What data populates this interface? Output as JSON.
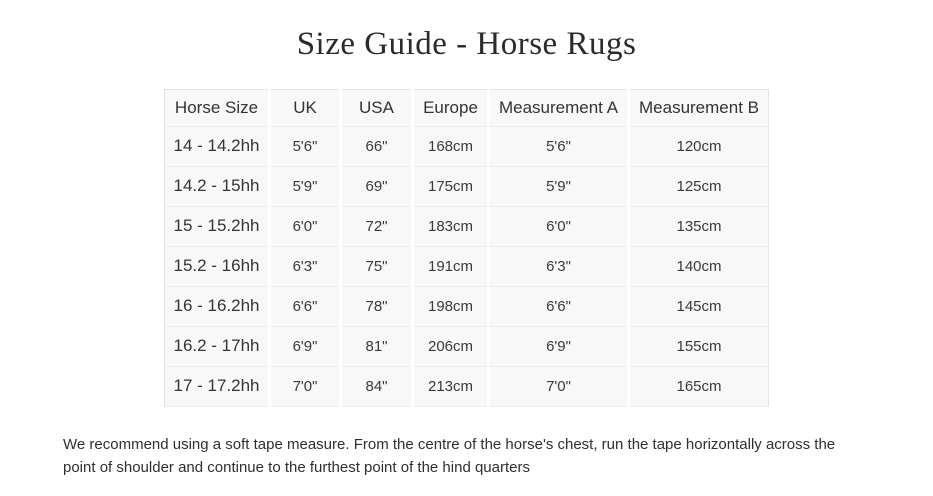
{
  "page": {
    "title": "Size Guide - Horse Rugs"
  },
  "table": {
    "columns": [
      "Horse Size",
      "UK",
      "USA",
      "Europe",
      "Measurement A",
      "Measurement B"
    ],
    "rows": [
      [
        "14 - 14.2hh",
        "5'6\"",
        "66\"",
        "168cm",
        "5'6\"",
        "120cm"
      ],
      [
        "14.2 - 15hh",
        "5'9\"",
        "69\"",
        "175cm",
        "5'9\"",
        "125cm"
      ],
      [
        "15 - 15.2hh",
        "6'0\"",
        "72\"",
        "183cm",
        "6'0\"",
        "135cm"
      ],
      [
        "15.2 - 16hh",
        "6'3\"",
        "75\"",
        "191cm",
        "6'3\"",
        "140cm"
      ],
      [
        "16 - 16.2hh",
        "6'6\"",
        "78\"",
        "198cm",
        "6'6\"",
        "145cm"
      ],
      [
        "16.2 - 17hh",
        "6'9\"",
        "81\"",
        "206cm",
        "6'9\"",
        "155cm"
      ],
      [
        "17 - 17.2hh",
        "7'0\"",
        "84\"",
        "213cm",
        "7'0\"",
        "165cm"
      ]
    ]
  },
  "note": {
    "line1": "We recommend using a soft tape measure. From the centre of the horse's chest, run the tape horizontally across the",
    "line2": "point of shoulder and continue to the furthest point of the hind quarters"
  }
}
